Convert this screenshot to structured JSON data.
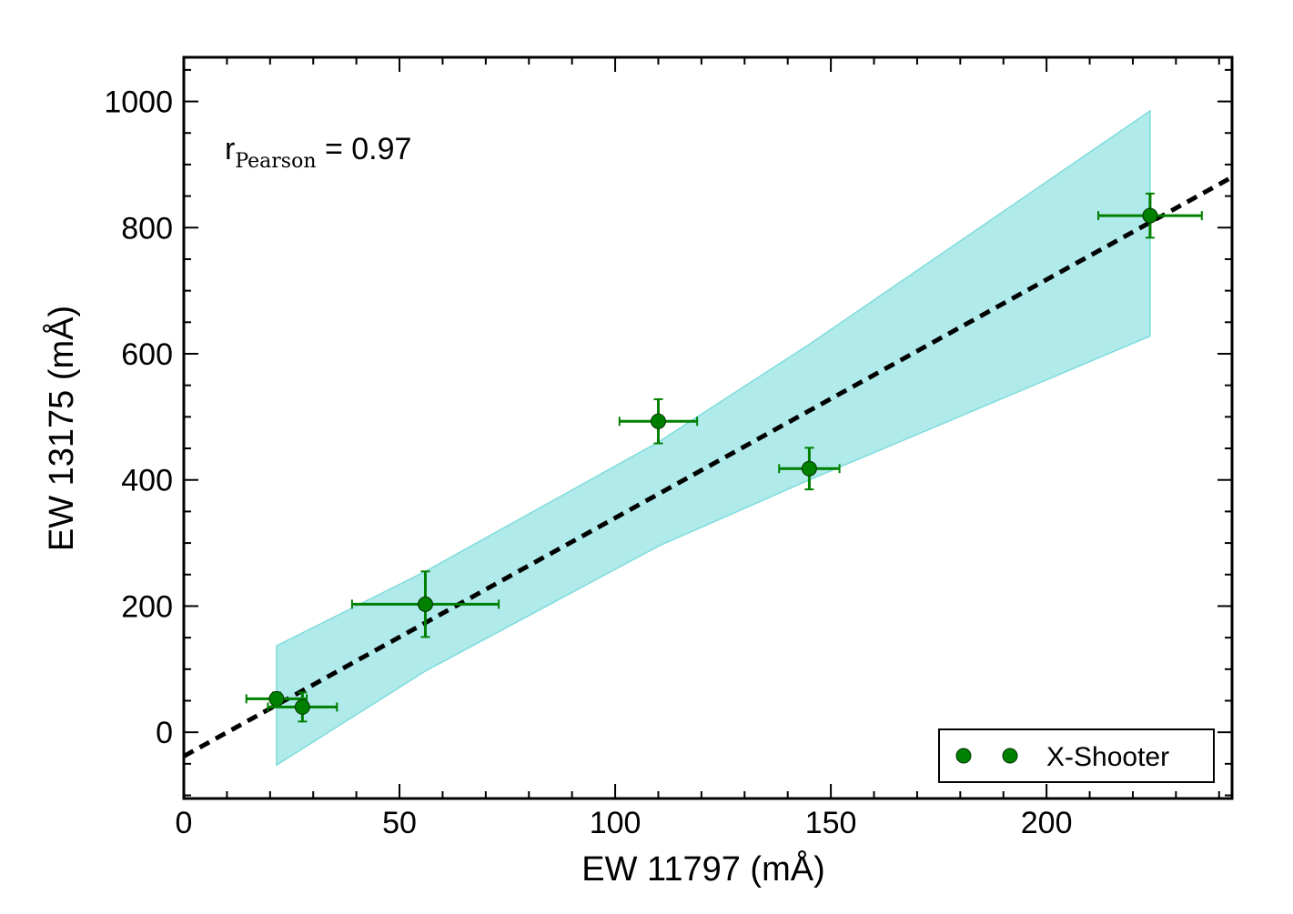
{
  "chart_data": {
    "type": "scatter",
    "xlabel": "EW 11797 (mÅ)",
    "ylabel": "EW 13175 (mÅ)",
    "xlim": [
      0,
      243
    ],
    "ylim": [
      -105,
      1070
    ],
    "xticks": [
      0,
      50,
      100,
      150,
      200
    ],
    "yticks": [
      0,
      200,
      400,
      600,
      800,
      1000
    ],
    "xtick_labels": [
      "0",
      "50",
      "100",
      "150",
      "200"
    ],
    "ytick_labels": [
      "0",
      "200",
      "400",
      "600",
      "800",
      "1000"
    ],
    "minor_xtick_step": 10,
    "minor_ytick_step": 50,
    "annotation": {
      "main": "r",
      "sub": "Pearson",
      "value": " = 0.97",
      "position": "top-left"
    },
    "series": [
      {
        "name": "X-Shooter",
        "color": "#008000",
        "points": [
          {
            "x": 21.5,
            "y": 53,
            "xerr": 7,
            "yerr": 10
          },
          {
            "x": 27.5,
            "y": 40,
            "xerr": 8,
            "yerr": 23
          },
          {
            "x": 56,
            "y": 203,
            "xerr": 17,
            "yerr": 52
          },
          {
            "x": 110,
            "y": 493,
            "xerr": 9,
            "yerr": 35
          },
          {
            "x": 145,
            "y": 418,
            "xerr": 7,
            "yerr": 33
          },
          {
            "x": 224,
            "y": 819,
            "xerr": 12,
            "yerr": 35
          }
        ]
      }
    ],
    "fit_line": {
      "style": "dashed",
      "color": "#000000",
      "x": [
        0,
        243
      ],
      "y": [
        -38,
        880
      ]
    },
    "confidence_band": {
      "color": "#b0eaea",
      "edge_color": "#7fdcdc",
      "x": [
        21.5,
        56,
        110,
        145,
        224
      ],
      "upper": [
        137,
        255,
        460,
        615,
        985
      ],
      "lower": [
        -52,
        97,
        295,
        400,
        628
      ]
    },
    "legend": {
      "entries": [
        "X-Shooter"
      ],
      "location": "bottom-right"
    }
  }
}
